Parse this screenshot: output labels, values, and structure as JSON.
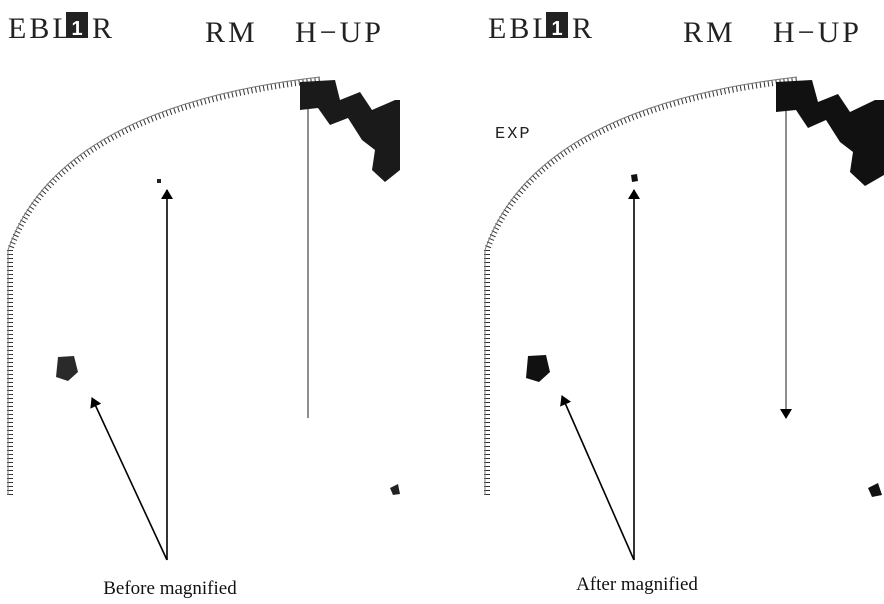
{
  "left_panel": {
    "ebl": "EBL",
    "ebl_number": "1",
    "ebl_suffix": "R",
    "mode": "RM",
    "orientation": "H−UP",
    "caption": "Before magnified"
  },
  "right_panel": {
    "ebl": "EBL",
    "ebl_number": "1",
    "ebl_suffix": "R",
    "mode": "RM",
    "orientation": "H−UP",
    "expansion": "EXP",
    "caption": "After magnified"
  }
}
